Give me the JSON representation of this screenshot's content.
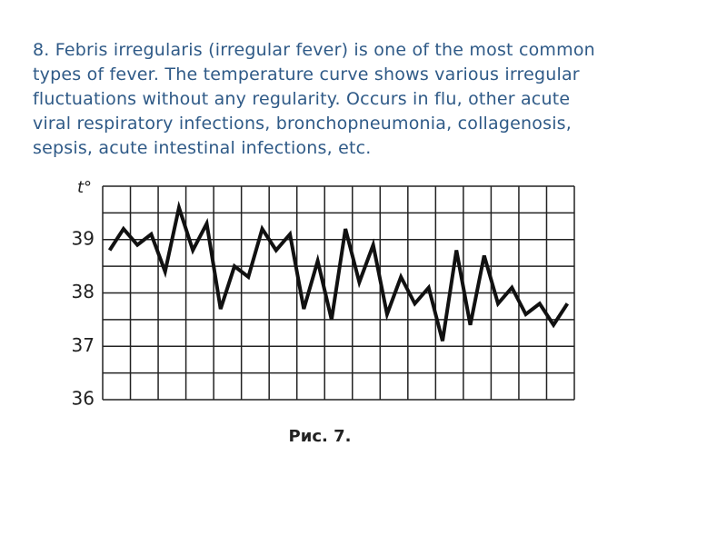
{
  "text_lines": [
    "8. Febris irregularis (irregular fever) is one of the most common",
    "types of fever. The temperature curve shows various irregular",
    "fluctuations without any regularity. Occurs in flu, other acute",
    "viral respiratory infections, bronchopneumonia, collagenosis,",
    "sepsis, acute intestinal infections, etc."
  ],
  "chart_data": {
    "type": "line",
    "ylabel": "t°",
    "caption": "Рис. 7.",
    "ylim": [
      36,
      40
    ],
    "yticks": [
      36,
      37,
      38,
      39
    ],
    "ygrid": [
      36,
      36.5,
      37,
      37.5,
      38,
      38.5,
      39,
      39.5,
      40
    ],
    "xlim": [
      0,
      17
    ],
    "xgrid": [
      0,
      1,
      2,
      3,
      4,
      5,
      6,
      7,
      8,
      9,
      10,
      11,
      12,
      13,
      14,
      15,
      16,
      17
    ],
    "x": [
      0.25,
      0.75,
      1.25,
      1.75,
      2.25,
      2.75,
      3.25,
      3.75,
      4.25,
      4.75,
      5.25,
      5.75,
      6.25,
      6.75,
      7.25,
      7.75,
      8.25,
      8.75,
      9.25,
      9.75,
      10.25,
      10.75,
      11.25,
      11.75,
      12.25,
      12.75,
      13.25,
      13.75,
      14.25,
      14.75,
      15.25,
      15.75,
      16.25,
      16.75
    ],
    "series": [
      {
        "color": "#111111",
        "values": [
          38.8,
          39.2,
          38.9,
          39.1,
          38.4,
          39.6,
          38.8,
          39.3,
          37.7,
          38.5,
          38.3,
          39.2,
          38.8,
          39.1,
          37.7,
          38.6,
          37.5,
          39.2,
          38.2,
          38.9,
          37.6,
          38.3,
          37.8,
          38.1,
          37.1,
          38.8,
          37.4,
          38.7,
          37.8,
          38.1,
          37.6,
          37.8,
          37.4,
          37.8
        ]
      }
    ]
  }
}
